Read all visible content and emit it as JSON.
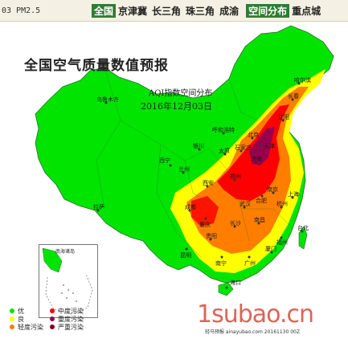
{
  "topbar": {
    "code": "03 PM2.5",
    "tabs": [
      "全国",
      "京津冀",
      "长三角",
      "珠三角",
      "成渝"
    ],
    "active_tab": "全国",
    "spatial_tab": "空间分布",
    "key_tab": "重点城"
  },
  "map": {
    "title": "全国空气质量数值预报",
    "subtitle": "AQI指数空间分布",
    "date": "2016年12月03日",
    "inset_label": "南海诸岛",
    "cities": [
      "乌鲁木齐",
      "兰州",
      "西宁",
      "拉萨",
      "西安",
      "成都",
      "重庆",
      "昆明",
      "贵阳",
      "长沙",
      "南宁",
      "广州",
      "海口",
      "武汉",
      "南昌",
      "福州",
      "杭州",
      "上海",
      "南京",
      "合肥",
      "郑州",
      "济南",
      "太原",
      "石家庄",
      "北京",
      "天津",
      "呼和浩特",
      "银川",
      "沈阳",
      "长春",
      "哈尔滨",
      "台北",
      "厦门"
    ],
    "colors": {
      "good": "#00e400",
      "moderate": "#ffff00",
      "light": "#ff7e00",
      "medium": "#ff0000",
      "heavy": "#99004c",
      "severe": "#7e0023"
    }
  },
  "legend": {
    "items": [
      {
        "label": "优",
        "color": "#00e400"
      },
      {
        "label": "中度污染",
        "color": "#ff0000"
      },
      {
        "label": "良",
        "color": "#ffff00"
      },
      {
        "label": "重度污染",
        "color": "#99004c"
      },
      {
        "label": "轻度污染",
        "color": "#ff7e00"
      },
      {
        "label": "严重污染",
        "color": "#7e0023"
      }
    ]
  },
  "watermark": "1subao.cn",
  "footer": "轻马预报 ainayubao.com 20161130 00Z"
}
